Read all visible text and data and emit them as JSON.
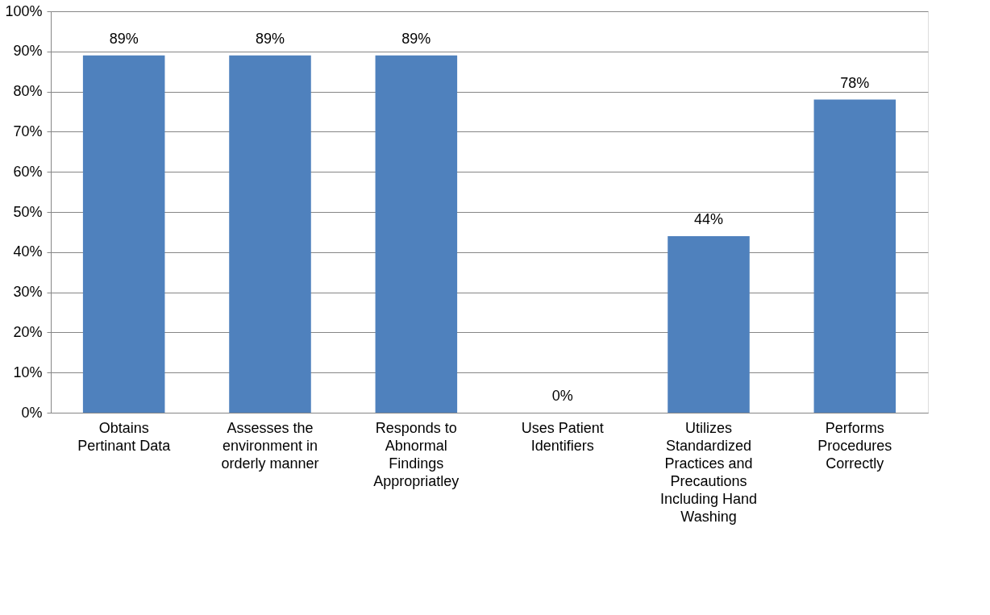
{
  "chart_data": {
    "type": "bar",
    "categories": [
      "Obtains Pertinant Data",
      "Assesses the environment in orderly manner",
      "Responds to Abnormal Findings Appropriatley",
      "Uses Patient Identifiers",
      "Utilizes Standardized Practices and Precautions Including Hand Washing",
      "Performs Procedures Correctly"
    ],
    "values": [
      89,
      89,
      89,
      0,
      44,
      78
    ],
    "value_labels": [
      "89%",
      "89%",
      "89%",
      "0%",
      "44%",
      "78%"
    ],
    "color": "#4f81bd",
    "ylim": [
      0,
      100
    ],
    "yticks": [
      {
        "value": 0,
        "label": "0%"
      },
      {
        "value": 10,
        "label": "10%"
      },
      {
        "value": 20,
        "label": "20%"
      },
      {
        "value": 30,
        "label": "30%"
      },
      {
        "value": 40,
        "label": "40%"
      },
      {
        "value": 50,
        "label": "50%"
      },
      {
        "value": 60,
        "label": "60%"
      },
      {
        "value": 70,
        "label": "70%"
      },
      {
        "value": 80,
        "label": "80%"
      },
      {
        "value": 90,
        "label": "90%"
      },
      {
        "value": 100,
        "label": "100%"
      }
    ],
    "grid": "y"
  }
}
